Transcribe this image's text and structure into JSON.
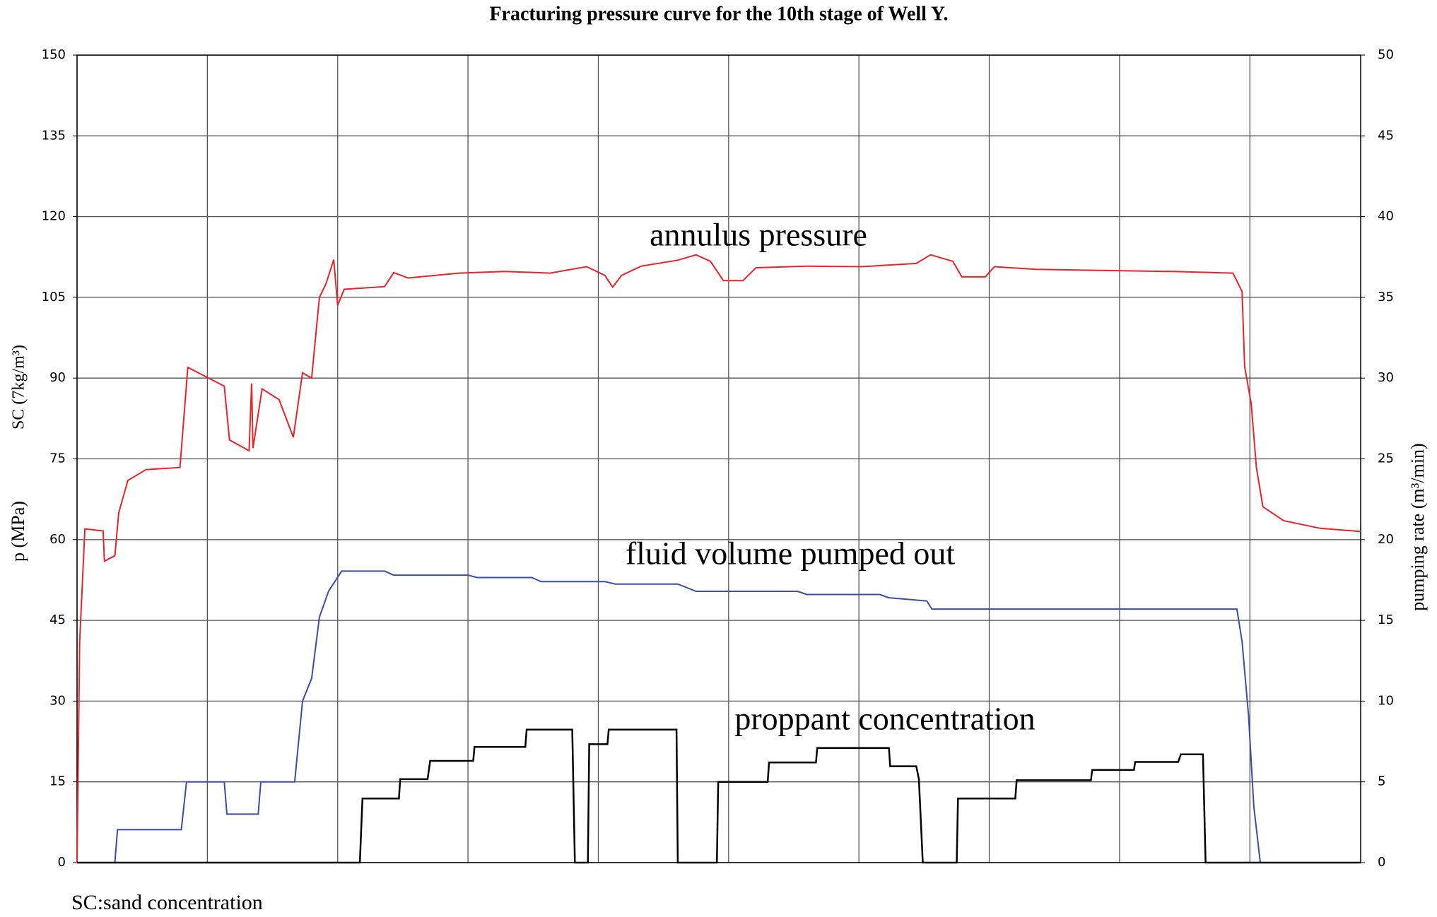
{
  "chart_data": {
    "type": "line",
    "title": "Fracturing pressure curve for the 10th stage of Well Y.",
    "ylabel": "p (MPa)",
    "ylabel_sc": "SC (7kg/m³)",
    "y2label": "pumping rate (m³/min)",
    "footnote": "SC:sand concentration",
    "xlim": [
      0,
      9.85
    ],
    "ylim": [
      0,
      150
    ],
    "yticks": [
      0,
      15,
      30,
      45,
      60,
      75,
      90,
      105,
      120,
      135,
      150
    ],
    "y2lim": [
      0,
      50
    ],
    "y2ticks": [
      0,
      5,
      10,
      15,
      20,
      25,
      30,
      35,
      40,
      45,
      50
    ],
    "grid": true,
    "series": [
      {
        "name": "annulus pressure",
        "color": "#e8232a",
        "axis": "y",
        "x": [
          0,
          0.02,
          0.06,
          0.2,
          0.21,
          0.29,
          0.32,
          0.39,
          0.53,
          0.79,
          0.85,
          1.13,
          1.17,
          1.32,
          1.34,
          1.35,
          1.42,
          1.55,
          1.66,
          1.73,
          1.8,
          1.86,
          1.91,
          1.97,
          2.0,
          2.05,
          2.36,
          2.43,
          2.54,
          2.93,
          3.28,
          3.63,
          3.91,
          4.05,
          4.11,
          4.18,
          4.33,
          4.61,
          4.75,
          4.86,
          4.96,
          5.11,
          5.21,
          5.6,
          6.02,
          6.44,
          6.55,
          6.72,
          6.79,
          6.97,
          7.04,
          7.36,
          7.85,
          8.41,
          8.87,
          8.94,
          8.96,
          9.01,
          9.05,
          9.1,
          9.26,
          9.54,
          9.85
        ],
        "values": [
          0,
          41,
          62,
          61.6,
          56,
          57,
          65,
          71,
          73,
          73.4,
          92,
          88.5,
          78.5,
          76.5,
          89,
          77,
          88,
          86,
          79,
          91,
          90,
          105,
          107.5,
          112,
          103.5,
          106.5,
          107,
          109.6,
          108.6,
          109.5,
          109.8,
          109.5,
          110.7,
          109.1,
          106.9,
          109.1,
          110.8,
          111.9,
          112.9,
          111.7,
          108.1,
          108.1,
          110.5,
          110.8,
          110.7,
          111.3,
          112.9,
          111.7,
          108.8,
          108.8,
          110.7,
          110.2,
          110,
          109.8,
          109.5,
          106.1,
          92.1,
          85.3,
          73.4,
          66.1,
          63.5,
          62.1,
          61.5
        ]
      },
      {
        "name": "fluid volume pumped out",
        "color": "#3a4ea8",
        "axis": "y2",
        "x": [
          0,
          0.29,
          0.31,
          0.8,
          0.84,
          1.13,
          1.15,
          1.39,
          1.41,
          1.67,
          1.73,
          1.8,
          1.86,
          1.93,
          2.03,
          2.36,
          2.43,
          3.0,
          3.07,
          3.49,
          3.56,
          4.05,
          4.13,
          4.61,
          4.75,
          5.53,
          5.6,
          6.16,
          6.23,
          6.52,
          6.56,
          8.9,
          8.94,
          8.99,
          9.03,
          9.08,
          9.85
        ],
        "values": [
          0,
          0,
          2.04,
          2.04,
          5,
          5,
          3,
          3,
          5,
          5,
          10,
          11.4,
          15.2,
          16.8,
          18.05,
          18.05,
          17.8,
          17.8,
          17.65,
          17.65,
          17.4,
          17.4,
          17.25,
          17.25,
          16.8,
          16.8,
          16.6,
          16.6,
          16.4,
          16.2,
          15.7,
          15.7,
          13.7,
          9.1,
          3.5,
          0,
          0
        ]
      },
      {
        "name": "proppant concentration",
        "color": "#000000",
        "axis": "y",
        "x": [
          0,
          2.17,
          2.19,
          2.47,
          2.48,
          2.69,
          2.71,
          3.04,
          3.05,
          3.44,
          3.45,
          3.8,
          3.82,
          3.92,
          3.93,
          4.07,
          4.08,
          4.6,
          4.61,
          4.91,
          4.92,
          5.3,
          5.31,
          5.67,
          5.68,
          6.23,
          6.24,
          6.44,
          6.46,
          6.49,
          6.75,
          6.76,
          7.2,
          7.21,
          7.78,
          7.79,
          8.11,
          8.12,
          8.45,
          8.47,
          8.64,
          8.66,
          9.85
        ],
        "values": [
          0,
          0,
          11.9,
          11.9,
          15.5,
          15.5,
          18.9,
          18.9,
          21.5,
          21.5,
          24.7,
          24.7,
          0,
          0,
          22,
          22,
          24.7,
          24.7,
          0,
          0,
          15,
          15,
          18.6,
          18.6,
          21.3,
          21.3,
          17.9,
          17.9,
          15.5,
          0,
          0,
          11.9,
          11.9,
          15.3,
          15.3,
          17.2,
          17.2,
          18.7,
          18.7,
          20.1,
          20.1,
          0,
          0
        ]
      }
    ]
  }
}
